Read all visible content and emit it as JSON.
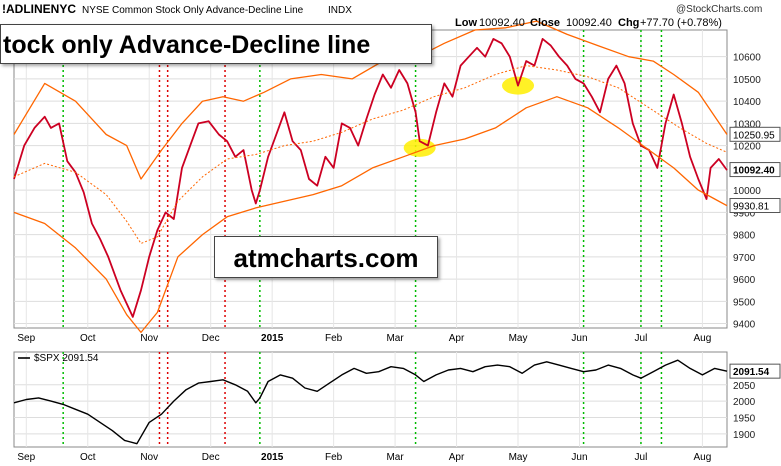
{
  "header": {
    "symbol": "!ADLINENYC",
    "name": "NYSE Common Stock Only Advance-Decline Line",
    "exchange": "INDX",
    "low_label": "Low",
    "low_value": "10092.40",
    "close_label": "Close",
    "close_value": "10092.40",
    "chg_label": "Chg",
    "chg_value": "+77.70 (+0.78%)",
    "site": "@StockCharts.com"
  },
  "overlays": {
    "title": "tock only Advance-Decline line",
    "watermark": "atmcharts.com"
  },
  "colors": {
    "price": "#cc0022",
    "band": "#ff6600",
    "vline_red": "#dd0000",
    "vline_green": "#00bb00",
    "highlight": "#ffee00"
  },
  "x_axis": {
    "labels": [
      "Sep",
      "Oct",
      "Nov",
      "Dec",
      "2015",
      "Feb",
      "Mar",
      "Apr",
      "May",
      "Jun",
      "Jul",
      "Aug"
    ],
    "label_days": [
      6,
      36,
      66,
      96,
      126,
      156,
      186,
      216,
      246,
      276,
      306,
      336
    ]
  },
  "chart_data": [
    {
      "type": "line",
      "title": "!ADLINENYC NYSE Common Stock Only Advance-Decline Line INDX",
      "x_range_days": [
        0,
        348
      ],
      "ylim": [
        9380,
        10720
      ],
      "yticks": [
        9400,
        9500,
        9600,
        9700,
        9800,
        9900,
        10000,
        10100,
        10200,
        10300,
        10400,
        10500,
        10600
      ],
      "series": [
        {
          "name": "!ADLINENYC",
          "points": [
            [
              0,
              10050
            ],
            [
              5,
              10200
            ],
            [
              10,
              10280
            ],
            [
              15,
              10330
            ],
            [
              18,
              10280
            ],
            [
              22,
              10300
            ],
            [
              26,
              10130
            ],
            [
              30,
              10080
            ],
            [
              34,
              9990
            ],
            [
              38,
              9850
            ],
            [
              42,
              9780
            ],
            [
              46,
              9700
            ],
            [
              52,
              9550
            ],
            [
              58,
              9430
            ],
            [
              62,
              9550
            ],
            [
              66,
              9700
            ],
            [
              70,
              9820
            ],
            [
              74,
              9900
            ],
            [
              78,
              9870
            ],
            [
              82,
              10100
            ],
            [
              86,
              10200
            ],
            [
              90,
              10300
            ],
            [
              95,
              10310
            ],
            [
              100,
              10250
            ],
            [
              104,
              10220
            ],
            [
              108,
              10150
            ],
            [
              112,
              10180
            ],
            [
              116,
              10000
            ],
            [
              118,
              9940
            ],
            [
              120,
              10000
            ],
            [
              124,
              10150
            ],
            [
              128,
              10250
            ],
            [
              132,
              10350
            ],
            [
              136,
              10220
            ],
            [
              140,
              10180
            ],
            [
              144,
              10050
            ],
            [
              148,
              10020
            ],
            [
              152,
              10150
            ],
            [
              156,
              10100
            ],
            [
              160,
              10300
            ],
            [
              164,
              10280
            ],
            [
              168,
              10200
            ],
            [
              172,
              10320
            ],
            [
              176,
              10430
            ],
            [
              180,
              10520
            ],
            [
              184,
              10460
            ],
            [
              188,
              10540
            ],
            [
              192,
              10480
            ],
            [
              196,
              10350
            ],
            [
              198,
              10220
            ],
            [
              202,
              10200
            ],
            [
              206,
              10350
            ],
            [
              210,
              10480
            ],
            [
              214,
              10420
            ],
            [
              218,
              10560
            ],
            [
              222,
              10600
            ],
            [
              226,
              10640
            ],
            [
              230,
              10600
            ],
            [
              234,
              10680
            ],
            [
              238,
              10660
            ],
            [
              242,
              10600
            ],
            [
              246,
              10470
            ],
            [
              250,
              10580
            ],
            [
              254,
              10560
            ],
            [
              258,
              10680
            ],
            [
              262,
              10650
            ],
            [
              266,
              10600
            ],
            [
              270,
              10560
            ],
            [
              274,
              10500
            ],
            [
              278,
              10480
            ],
            [
              282,
              10420
            ],
            [
              286,
              10350
            ],
            [
              290,
              10500
            ],
            [
              294,
              10560
            ],
            [
              298,
              10480
            ],
            [
              302,
              10300
            ],
            [
              306,
              10200
            ],
            [
              310,
              10180
            ],
            [
              314,
              10100
            ],
            [
              318,
              10300
            ],
            [
              322,
              10430
            ],
            [
              326,
              10300
            ],
            [
              330,
              10150
            ],
            [
              334,
              10050
            ],
            [
              338,
              9960
            ],
            [
              340,
              10100
            ],
            [
              344,
              10140
            ],
            [
              348,
              10090
            ]
          ]
        },
        {
          "name": "Upper band",
          "points": [
            [
              0,
              10250
            ],
            [
              15,
              10480
            ],
            [
              30,
              10400
            ],
            [
              45,
              10250
            ],
            [
              55,
              10200
            ],
            [
              62,
              10050
            ],
            [
              72,
              10180
            ],
            [
              82,
              10300
            ],
            [
              92,
              10400
            ],
            [
              102,
              10420
            ],
            [
              112,
              10400
            ],
            [
              122,
              10440
            ],
            [
              135,
              10500
            ],
            [
              150,
              10520
            ],
            [
              165,
              10500
            ],
            [
              180,
              10580
            ],
            [
              195,
              10590
            ],
            [
              210,
              10660
            ],
            [
              225,
              10720
            ],
            [
              240,
              10730
            ],
            [
              255,
              10760
            ],
            [
              270,
              10700
            ],
            [
              285,
              10650
            ],
            [
              300,
              10600
            ],
            [
              312,
              10580
            ],
            [
              322,
              10520
            ],
            [
              334,
              10440
            ],
            [
              348,
              10250
            ]
          ]
        },
        {
          "name": "Middle band",
          "points": [
            [
              0,
              10060
            ],
            [
              15,
              10120
            ],
            [
              30,
              10080
            ],
            [
              45,
              9980
            ],
            [
              55,
              9860
            ],
            [
              62,
              9760
            ],
            [
              70,
              9790
            ],
            [
              80,
              9950
            ],
            [
              92,
              10060
            ],
            [
              104,
              10140
            ],
            [
              118,
              10160
            ],
            [
              132,
              10200
            ],
            [
              146,
              10220
            ],
            [
              160,
              10260
            ],
            [
              175,
              10320
            ],
            [
              190,
              10360
            ],
            [
              205,
              10420
            ],
            [
              220,
              10460
            ],
            [
              235,
              10520
            ],
            [
              250,
              10560
            ],
            [
              265,
              10540
            ],
            [
              280,
              10510
            ],
            [
              295,
              10460
            ],
            [
              310,
              10370
            ],
            [
              325,
              10280
            ],
            [
              338,
              10210
            ],
            [
              348,
              10170
            ]
          ]
        },
        {
          "name": "Lower band",
          "points": [
            [
              0,
              9900
            ],
            [
              15,
              9850
            ],
            [
              30,
              9740
            ],
            [
              45,
              9600
            ],
            [
              55,
              9440
            ],
            [
              62,
              9360
            ],
            [
              70,
              9450
            ],
            [
              80,
              9700
            ],
            [
              92,
              9800
            ],
            [
              104,
              9880
            ],
            [
              118,
              9920
            ],
            [
              132,
              9950
            ],
            [
              146,
              9980
            ],
            [
              160,
              10020
            ],
            [
              175,
              10100
            ],
            [
              190,
              10150
            ],
            [
              205,
              10200
            ],
            [
              220,
              10230
            ],
            [
              235,
              10280
            ],
            [
              250,
              10370
            ],
            [
              265,
              10420
            ],
            [
              280,
              10370
            ],
            [
              295,
              10280
            ],
            [
              310,
              10180
            ],
            [
              322,
              10100
            ],
            [
              334,
              10000
            ],
            [
              342,
              9960
            ],
            [
              348,
              9930
            ]
          ]
        }
      ],
      "price_labels": [
        "10250.95",
        "10092.40",
        "9930.81"
      ],
      "price_label_values": [
        10250.95,
        10092.4,
        9930.81
      ],
      "highlights": [
        [
          198,
          10190
        ],
        [
          246,
          10470
        ]
      ],
      "vlines_red_days": [
        71,
        75,
        103
      ],
      "vlines_green_days": [
        24,
        120,
        196,
        278,
        306,
        316
      ]
    },
    {
      "type": "line",
      "title": "$SPX 2091.54",
      "x_range_days": [
        0,
        348
      ],
      "ylim": [
        1860,
        2150
      ],
      "yticks": [
        1900,
        1950,
        2000,
        2050
      ],
      "series": [
        {
          "name": "$SPX",
          "points": [
            [
              0,
              1995
            ],
            [
              6,
              2005
            ],
            [
              12,
              2010
            ],
            [
              18,
              2000
            ],
            [
              24,
              1990
            ],
            [
              30,
              1975
            ],
            [
              36,
              1960
            ],
            [
              42,
              1935
            ],
            [
              48,
              1910
            ],
            [
              54,
              1880
            ],
            [
              60,
              1870
            ],
            [
              66,
              1935
            ],
            [
              72,
              1960
            ],
            [
              78,
              2000
            ],
            [
              84,
              2035
            ],
            [
              90,
              2055
            ],
            [
              96,
              2060
            ],
            [
              102,
              2065
            ],
            [
              108,
              2050
            ],
            [
              114,
              2030
            ],
            [
              118,
              1995
            ],
            [
              120,
              2010
            ],
            [
              124,
              2060
            ],
            [
              130,
              2080
            ],
            [
              136,
              2070
            ],
            [
              142,
              2040
            ],
            [
              148,
              2030
            ],
            [
              154,
              2055
            ],
            [
              160,
              2080
            ],
            [
              166,
              2100
            ],
            [
              172,
              2085
            ],
            [
              178,
              2090
            ],
            [
              184,
              2105
            ],
            [
              190,
              2100
            ],
            [
              196,
              2080
            ],
            [
              200,
              2060
            ],
            [
              206,
              2080
            ],
            [
              212,
              2095
            ],
            [
              218,
              2100
            ],
            [
              224,
              2090
            ],
            [
              230,
              2105
            ],
            [
              236,
              2110
            ],
            [
              242,
              2105
            ],
            [
              248,
              2085
            ],
            [
              254,
              2110
            ],
            [
              260,
              2120
            ],
            [
              266,
              2110
            ],
            [
              272,
              2100
            ],
            [
              278,
              2090
            ],
            [
              284,
              2095
            ],
            [
              290,
              2110
            ],
            [
              296,
              2100
            ],
            [
              302,
              2080
            ],
            [
              306,
              2070
            ],
            [
              312,
              2090
            ],
            [
              318,
              2110
            ],
            [
              324,
              2125
            ],
            [
              330,
              2100
            ],
            [
              336,
              2080
            ],
            [
              342,
              2100
            ],
            [
              348,
              2091.54
            ]
          ]
        }
      ],
      "price_labels": [
        "2091.54"
      ],
      "price_label_values": [
        2091.54
      ],
      "vlines_red_days": [
        71,
        75,
        103
      ],
      "vlines_green_days": [
        24,
        120,
        196,
        278,
        306,
        316
      ]
    }
  ]
}
